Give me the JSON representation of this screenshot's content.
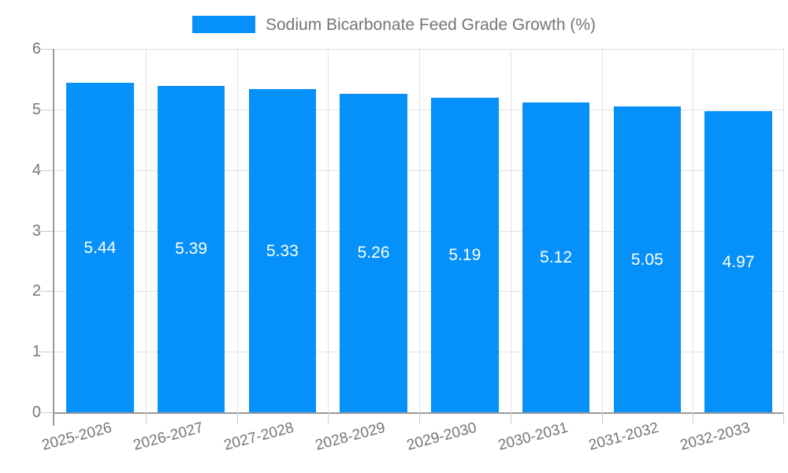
{
  "chart_data": {
    "type": "bar",
    "title": "Sodium Bicarbonate Feed Grade Growth (%)",
    "legend": [
      "Sodium Bicarbonate Feed Grade Growth (%)"
    ],
    "legend_position": "top-center",
    "categories": [
      "2025-2026",
      "2026-2027",
      "2027-2028",
      "2028-2029",
      "2029-2030",
      "2030-2031",
      "2031-2032",
      "2032-2033"
    ],
    "values": [
      5.44,
      5.39,
      5.33,
      5.26,
      5.19,
      5.12,
      5.05,
      4.97
    ],
    "value_labels": [
      "5.44",
      "5.39",
      "5.33",
      "5.26",
      "5.19",
      "5.12",
      "5.05",
      "4.97"
    ],
    "xlabel": "",
    "ylabel": "",
    "ylim": [
      0,
      6
    ],
    "yticks": [
      0,
      1,
      2,
      3,
      4,
      5,
      6
    ],
    "grid": true,
    "bar_color": "#0690fa",
    "value_label_color": "#ffffff",
    "axis_color": "#999999",
    "grid_color": "#e3e3e3",
    "tick_label_color": "#757575"
  }
}
